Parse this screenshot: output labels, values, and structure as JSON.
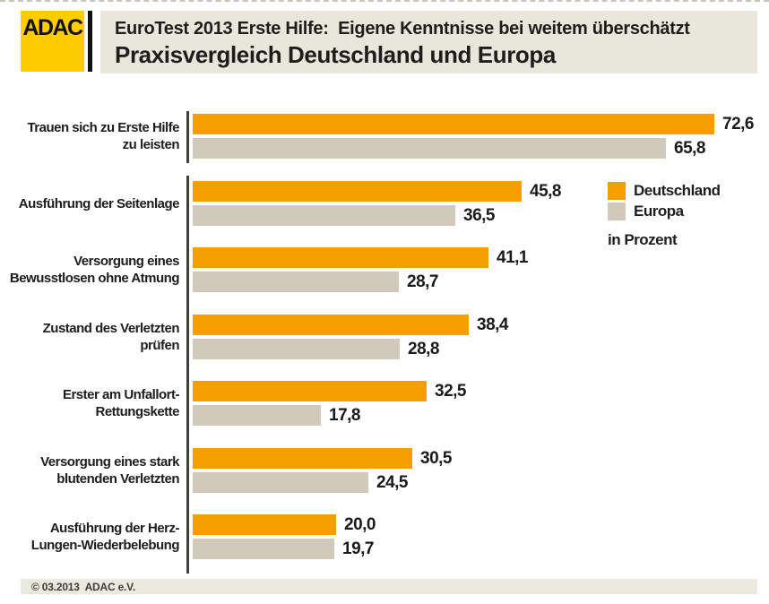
{
  "header": {
    "logo_text": "ADAC",
    "subtitle": "EuroTest 2013 Erste Hilfe:  Eigene Kenntnisse bei weitem überschätzt",
    "title": "Praxisvergleich Deutschland und Europa"
  },
  "chart_data": {
    "type": "bar",
    "orientation": "horizontal",
    "title": "Praxisvergleich Deutschland und Europa",
    "unit_note": "in Prozent",
    "grid": false,
    "legend_position": "right",
    "xlim": [
      0,
      75
    ],
    "categories": [
      "Trauen sich zu Erste Hilfe zu leisten",
      "Ausführung der Seitenlage",
      "Versorgung eines Bewusstlosen ohne Atmung",
      "Zustand des Verletzten prüfen",
      "Erster am Unfallort-Rettungskette",
      "Versorgung eines stark blutenden Verletzten",
      "Ausführung der Herz-Lungen-Wiederbelebung"
    ],
    "category_lines": [
      [
        "Trauen sich zu Erste Hilfe",
        "zu leisten"
      ],
      [
        "Ausführung der Seitenlage"
      ],
      [
        "Versorgung eines",
        "Bewusstlosen ohne Atmung"
      ],
      [
        "Zustand des Verletzten",
        "prüfen"
      ],
      [
        "Erster am Unfallort-",
        "Rettungskette"
      ],
      [
        "Versorgung eines stark",
        "blutenden Verletzten"
      ],
      [
        "Ausführung der Herz-",
        "Lungen-Wiederbelebung"
      ]
    ],
    "series": [
      {
        "name": "Deutschland",
        "color": "#F49E00",
        "values": [
          72.6,
          45.8,
          41.1,
          38.4,
          32.5,
          30.5,
          20.0
        ],
        "labels": [
          "72,6",
          "45,8",
          "41,1",
          "38,4",
          "32,5",
          "30,5",
          "20,0"
        ]
      },
      {
        "name": "Europa",
        "color": "#D1CABA",
        "values": [
          65.8,
          36.5,
          28.7,
          28.8,
          17.8,
          24.5,
          19.7
        ],
        "labels": [
          "65,8",
          "36,5",
          "28,7",
          "28,8",
          "17,8",
          "24,5",
          "19,7"
        ]
      }
    ]
  },
  "footer": {
    "copyright": "© 03.2013  ADAC e.V."
  },
  "colors": {
    "brand_yellow": "#FFCC00",
    "deutschland_orange": "#F49E00",
    "europa_beige": "#D1CABA",
    "header_bg": "#E9E6DB",
    "footer_bg": "#ECE9DE",
    "text": "#1D1D1B",
    "axis": "#3F3F3D"
  }
}
